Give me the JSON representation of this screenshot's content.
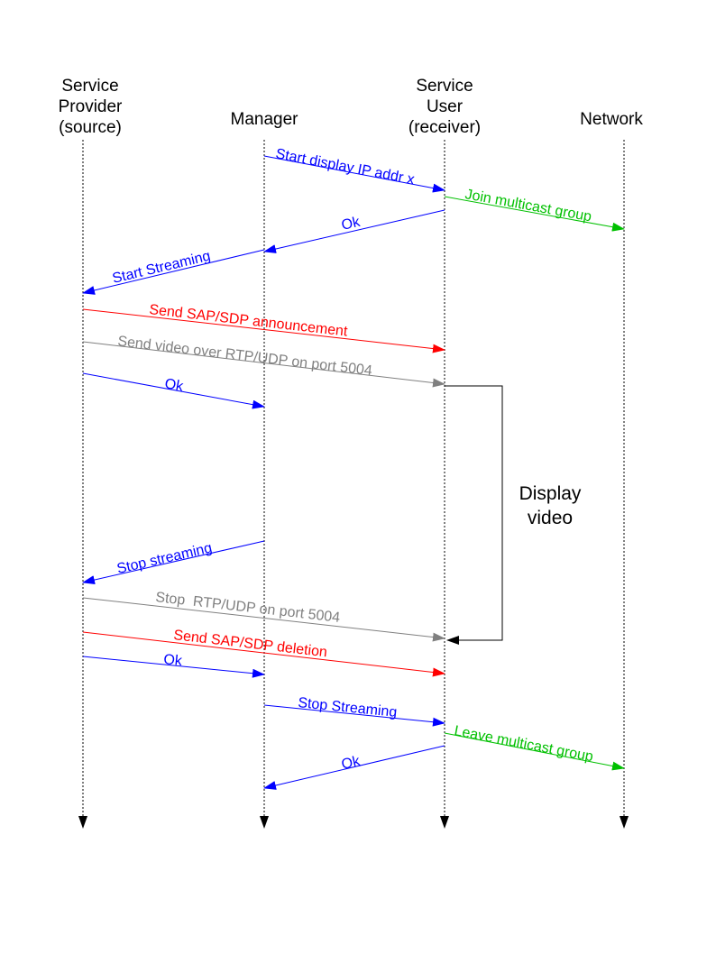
{
  "participants": [
    {
      "id": "provider",
      "label_lines": [
        "Service",
        "Provider",
        "(source)"
      ]
    },
    {
      "id": "manager",
      "label_lines": [
        "Manager"
      ]
    },
    {
      "id": "user",
      "label_lines": [
        "Service",
        "User",
        "(receiver)"
      ]
    },
    {
      "id": "network",
      "label_lines": [
        "Network"
      ]
    }
  ],
  "colors": {
    "control": "#0000ff",
    "multicast": "#00c000",
    "sap_sdp": "#ff0000",
    "media": "#808080",
    "lifeline": "#000000"
  },
  "messages": [
    {
      "id": "start-display",
      "from": "manager",
      "to": "user",
      "label": "Start display IP addr x",
      "color": "control"
    },
    {
      "id": "join-multicast",
      "from": "user",
      "to": "network",
      "label": "Join multicast group",
      "color": "multicast"
    },
    {
      "id": "ok-1",
      "from": "user",
      "to": "manager",
      "label": "Ok",
      "color": "control"
    },
    {
      "id": "start-streaming",
      "from": "manager",
      "to": "provider",
      "label": "Start Streaming",
      "color": "control"
    },
    {
      "id": "sap-announcement",
      "from": "provider",
      "to": "user",
      "label": "Send SAP/SDP announcement",
      "color": "sap_sdp"
    },
    {
      "id": "send-video",
      "from": "provider",
      "to": "user",
      "label": "Send video over RTP/UDP on port 5004",
      "color": "media"
    },
    {
      "id": "ok-2",
      "from": "provider",
      "to": "manager",
      "label": "Ok",
      "color": "control"
    },
    {
      "id": "stop-streaming-1",
      "from": "manager",
      "to": "provider",
      "label": "Stop streaming",
      "color": "control"
    },
    {
      "id": "stop-rtp",
      "from": "provider",
      "to": "user",
      "label": "Stop  RTP/UDP on port 5004",
      "color": "media"
    },
    {
      "id": "sap-deletion",
      "from": "provider",
      "to": "user",
      "label": "Send SAP/SDP deletion",
      "color": "sap_sdp"
    },
    {
      "id": "ok-3",
      "from": "provider",
      "to": "manager",
      "label": "Ok",
      "color": "control"
    },
    {
      "id": "stop-streaming-2",
      "from": "manager",
      "to": "user",
      "label": "Stop Streaming",
      "color": "control"
    },
    {
      "id": "leave-multicast",
      "from": "user",
      "to": "network",
      "label": "Leave multicast group",
      "color": "multicast"
    },
    {
      "id": "ok-4",
      "from": "user",
      "to": "manager",
      "label": "Ok",
      "color": "control"
    }
  ],
  "note": {
    "id": "display-video",
    "label_lines": [
      "Display",
      "video"
    ]
  }
}
